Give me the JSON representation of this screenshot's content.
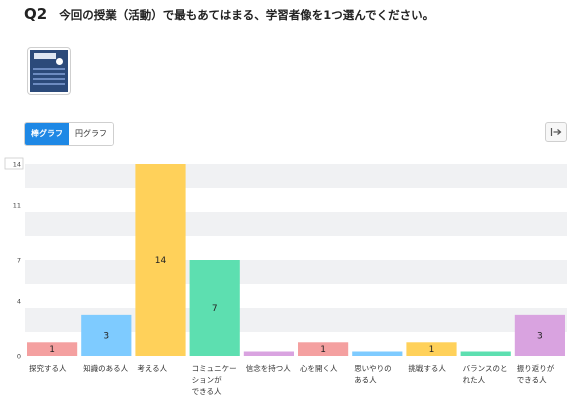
{
  "question": {
    "number": "Q2",
    "text": "今回の授業（活動）で最もあてはまる、学習者像を1つ選んでください。"
  },
  "thumbnail": {
    "icon": "document-thumbnail-icon"
  },
  "view_toggle": {
    "bar_label": "棒グラフ",
    "pie_label": "円グラフ",
    "selected": "bar"
  },
  "export": {
    "icon": "export-arrow-icon"
  },
  "chart_data": {
    "type": "bar",
    "categories": [
      "探究する人",
      "知識のある人",
      "考える人",
      "コミュニケーションができる人",
      "信念を持つ人",
      "心を開く人",
      "思いやりのある人",
      "挑戦する人",
      "バランスのとれた人",
      "振り返りができる人"
    ],
    "category_lines": [
      [
        "探究する人"
      ],
      [
        "知識のある人"
      ],
      [
        "考える人"
      ],
      [
        "コミュニケー",
        "ションが",
        "できる人"
      ],
      [
        "信念を持つ人"
      ],
      [
        "心を開く人"
      ],
      [
        "思いやりの",
        "ある人"
      ],
      [
        "挑戦する人"
      ],
      [
        "バランスのと",
        "れた人"
      ],
      [
        "振り返りが",
        "できる人"
      ]
    ],
    "values": [
      1,
      3,
      14,
      7,
      0,
      1,
      0,
      1,
      0,
      3
    ],
    "value_labels": [
      "1",
      "3",
      "14",
      "7",
      "",
      "1",
      "",
      "1",
      "",
      "3"
    ],
    "colors": [
      "#f4a0a0",
      "#7ecbff",
      "#ffd15a",
      "#5ddfb0",
      "#d9a3e0",
      "#f4a0a0",
      "#7ecbff",
      "#ffd15a",
      "#5ddfb0",
      "#d9a3e0"
    ],
    "yticks": [
      "0",
      "4",
      "7",
      "11",
      "14"
    ],
    "ylim": [
      0,
      14
    ],
    "max_badge": "14",
    "grid": true
  }
}
